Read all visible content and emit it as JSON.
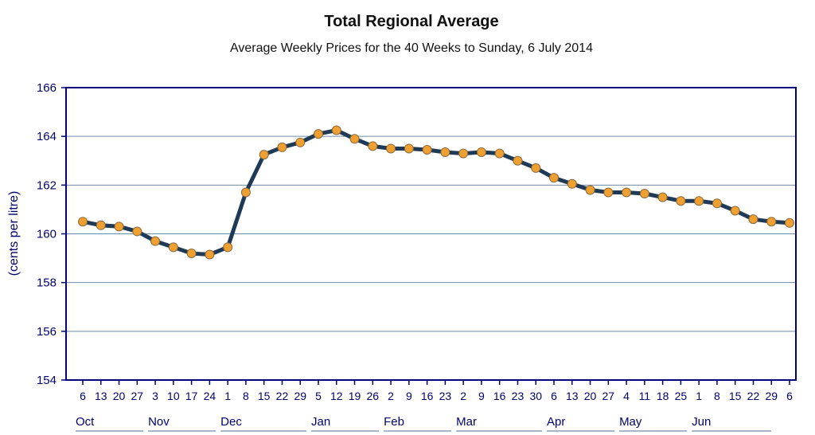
{
  "chart_data": {
    "type": "line",
    "title": "Total Regional Average",
    "subtitle": "Average Weekly Prices for the 40 Weeks to Sunday, 6 July 2014",
    "xlabel": "",
    "ylabel": "(cents per litre)",
    "ylim": [
      154,
      166
    ],
    "yticks": [
      154,
      156,
      158,
      160,
      162,
      164,
      166
    ],
    "grid": true,
    "legend": "none",
    "colors": {
      "line": "#1f3a56",
      "marker": "#f0a030",
      "marker_edge": "#8a6a3a",
      "axis": "#00007a",
      "grid": "#6f8aa6",
      "text": "#00006e"
    },
    "x": [
      "6",
      "13",
      "20",
      "27",
      "3",
      "10",
      "17",
      "24",
      "1",
      "8",
      "15",
      "22",
      "29",
      "5",
      "12",
      "19",
      "26",
      "2",
      "9",
      "16",
      "23",
      "2",
      "9",
      "16",
      "23",
      "30",
      "6",
      "13",
      "20",
      "27",
      "4",
      "11",
      "18",
      "25",
      "1",
      "8",
      "15",
      "22",
      "29",
      "6"
    ],
    "months": [
      {
        "label": "Oct",
        "start": 0
      },
      {
        "label": "Nov",
        "start": 4
      },
      {
        "label": "Dec",
        "start": 8
      },
      {
        "label": "Jan",
        "start": 13
      },
      {
        "label": "Feb",
        "start": 17
      },
      {
        "label": "Mar",
        "start": 21
      },
      {
        "label": "Apr",
        "start": 26
      },
      {
        "label": "May",
        "start": 30
      },
      {
        "label": "Jun",
        "start": 34
      }
    ],
    "series": [
      {
        "values": [
          160.5,
          160.35,
          160.3,
          160.1,
          159.7,
          159.45,
          159.2,
          159.15,
          159.45,
          161.7,
          163.25,
          163.55,
          163.75,
          164.1,
          164.25,
          163.9,
          163.6,
          163.5,
          163.5,
          163.45,
          163.35,
          163.3,
          163.35,
          163.3,
          163.0,
          162.7,
          162.3,
          162.05,
          161.8,
          161.7,
          161.7,
          161.65,
          161.5,
          161.35,
          161.35,
          161.25,
          160.95,
          160.6,
          160.5,
          160.45
        ]
      }
    ]
  }
}
